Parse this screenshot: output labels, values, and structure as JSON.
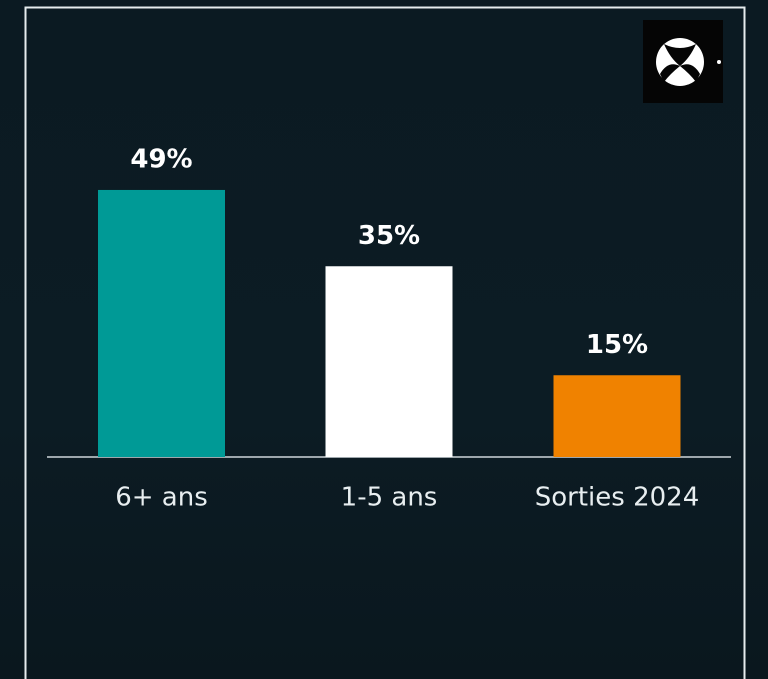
{
  "chart_data": {
    "type": "bar",
    "categories": [
      "6+ ans",
      "1-5 ans",
      "Sorties 2024"
    ],
    "values": [
      49,
      35,
      15
    ],
    "value_labels": [
      "49%",
      "35%",
      "15%"
    ],
    "colors": [
      "#009a96",
      "#ffffff",
      "#f08200"
    ]
  }
}
